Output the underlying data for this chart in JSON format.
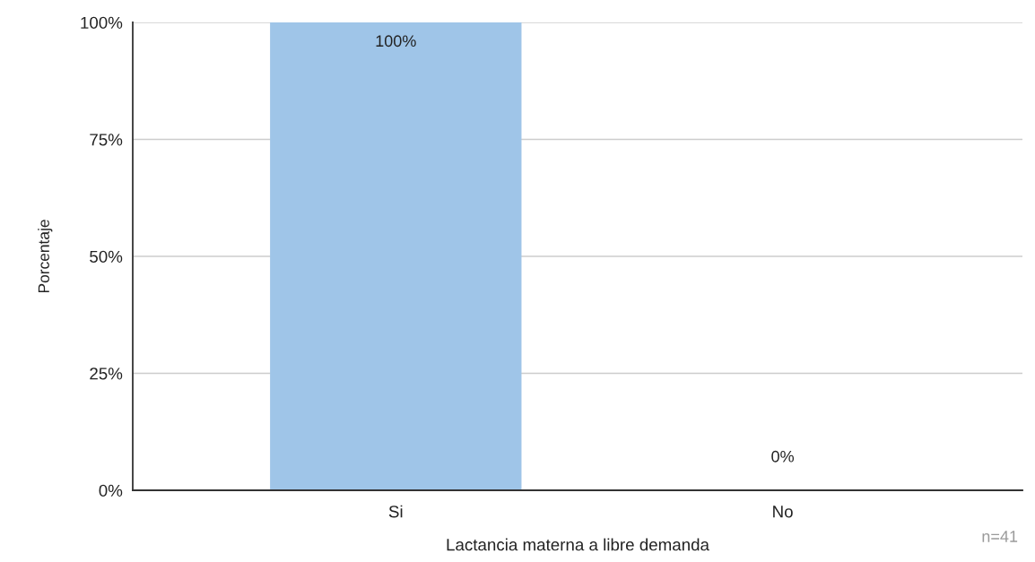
{
  "chart_data": {
    "type": "bar",
    "xlabel": "Lactancia materna a libre demanda",
    "ylabel": "Porcentaje",
    "categories": [
      "Si",
      "No"
    ],
    "values": [
      100,
      0
    ],
    "color": "#9fc5e8",
    "value_labels": [
      "100%",
      "0%"
    ],
    "ylim": [
      0,
      100
    ],
    "yticks": [
      {
        "value": 0,
        "label": "0%"
      },
      {
        "value": 25,
        "label": "25%"
      },
      {
        "value": 50,
        "label": "50%"
      },
      {
        "value": 75,
        "label": "75%"
      },
      {
        "value": 100,
        "label": "100%"
      }
    ],
    "grid": "y",
    "legend": false,
    "annotations": [
      "n=41"
    ]
  }
}
